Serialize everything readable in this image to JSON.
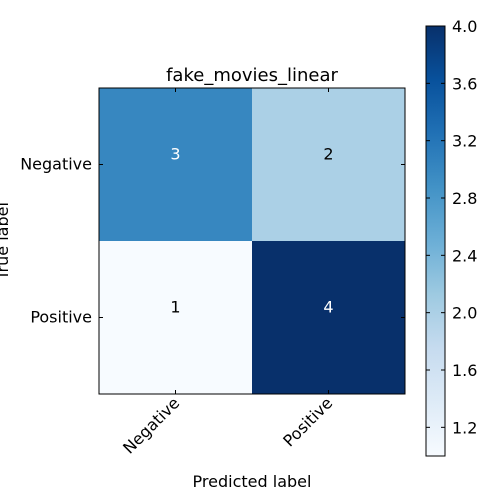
{
  "chart_data": {
    "type": "heatmap",
    "title": "fake_movies_linear",
    "xlabel": "Predicted label",
    "ylabel": "True label",
    "x_categories": [
      "Negative",
      "Positive"
    ],
    "y_categories": [
      "Negative",
      "Positive"
    ],
    "values": [
      [
        3,
        2
      ],
      [
        1,
        4
      ]
    ],
    "value_labels": [
      [
        "3",
        "2"
      ],
      [
        "1",
        "4"
      ]
    ],
    "colorbar": {
      "range": [
        1,
        4
      ],
      "ticks": [
        1.2,
        1.6,
        2.0,
        2.4,
        2.8,
        3.2,
        3.6,
        4.0
      ],
      "tick_labels": [
        "1.2",
        "1.6",
        "2.0",
        "2.4",
        "2.8",
        "3.2",
        "3.6",
        "4.0"
      ],
      "colormap": "Blues"
    },
    "colors": {
      "cell_3": "#3787c0",
      "cell_2": "#abd0e6",
      "cell_1": "#f7fbff",
      "cell_4": "#08306b",
      "text_on_dark": "#ffffff",
      "text_on_light": "#000000"
    }
  }
}
